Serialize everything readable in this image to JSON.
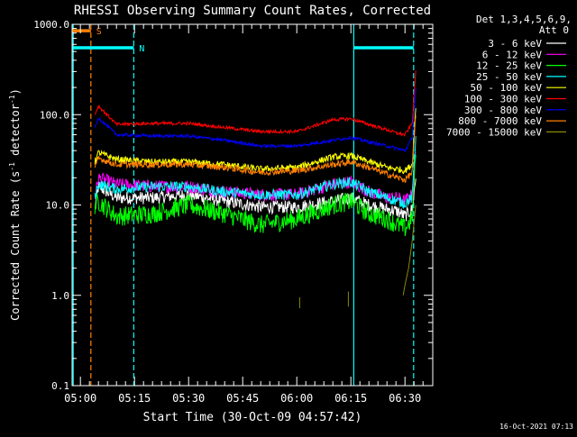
{
  "chart_data": {
    "type": "line",
    "title": "RHESSI Observing Summary Count Rates, Corrected",
    "xlabel": "Start Time (30-Oct-09 04:57:42)",
    "ylabel_main": "Corrected Count Rate (s",
    "ylabel_sup1": "-1",
    "ylabel_mid": " detector",
    "ylabel_sup2": "-1",
    "ylabel_end": ")",
    "yscale": "log",
    "ylim": [
      0.1,
      1000
    ],
    "xlim_minutes": [
      -2.3,
      97.7
    ],
    "x_unit": "minutes after 05:00 UT",
    "x_ticks": [
      {
        "label": "05:00",
        "value": 0
      },
      {
        "label": "05:15",
        "value": 15
      },
      {
        "label": "05:30",
        "value": 30
      },
      {
        "label": "05:45",
        "value": 45
      },
      {
        "label": "06:00",
        "value": 60
      },
      {
        "label": "06:15",
        "value": 75
      },
      {
        "label": "06:30",
        "value": 90
      }
    ],
    "y_ticks": [
      {
        "label": "0.1",
        "value": 0.1
      },
      {
        "label": "1.0",
        "value": 1
      },
      {
        "label": "10.0",
        "value": 10
      },
      {
        "label": "100.0",
        "value": 100
      },
      {
        "label": "1000.0",
        "value": 1000
      }
    ],
    "legend_header": [
      "Det 1,3,4,5,6,9,",
      "Att 0"
    ],
    "legend_position": "right",
    "series": [
      {
        "name": "3 - 6 keV",
        "color": "#ffffff",
        "x": [
          4,
          5,
          10,
          20,
          30,
          40,
          50,
          60,
          70,
          75,
          80,
          85,
          88,
          90,
          92,
          93
        ],
        "y": [
          9,
          16,
          12,
          12,
          13,
          11,
          9.5,
          9.5,
          11,
          12,
          10,
          9,
          8.5,
          7.5,
          9,
          20
        ],
        "noise": 0.06
      },
      {
        "name": "6 - 12 keV",
        "color": "#ff00ff",
        "x": [
          4,
          5,
          10,
          20,
          30,
          40,
          50,
          60,
          70,
          75,
          80,
          85,
          88,
          90,
          92,
          93
        ],
        "y": [
          12,
          20,
          17,
          16,
          16,
          14,
          13,
          13,
          17,
          18,
          14,
          12,
          12,
          11,
          13,
          40
        ],
        "noise": 0.06
      },
      {
        "name": "12 - 25 keV",
        "color": "#00ff00",
        "x": [
          4,
          5,
          10,
          20,
          30,
          40,
          50,
          60,
          70,
          75,
          80,
          85,
          88,
          90,
          92,
          93
        ],
        "y": [
          10,
          11,
          7.5,
          8,
          10,
          8,
          6,
          7,
          10,
          11,
          8,
          7,
          6,
          5.5,
          7,
          40
        ],
        "noise": 0.09
      },
      {
        "name": "25 - 50 keV",
        "color": "#00ffff",
        "x": [
          4,
          5,
          10,
          20,
          30,
          40,
          50,
          60,
          70,
          75,
          80,
          85,
          88,
          90,
          92,
          93
        ],
        "y": [
          12,
          17,
          15,
          16,
          16,
          14,
          13,
          13,
          17,
          18,
          14,
          12,
          11,
          10.5,
          12,
          60
        ],
        "noise": 0.05
      },
      {
        "name": "50 - 100 keV",
        "color": "#ffff00",
        "x": [
          4,
          5,
          10,
          20,
          30,
          40,
          50,
          60,
          70,
          75,
          80,
          85,
          88,
          90,
          92,
          93
        ],
        "y": [
          30,
          38,
          32,
          30,
          30,
          28,
          25,
          26,
          34,
          35,
          30,
          26,
          25,
          24,
          28,
          120
        ],
        "noise": 0.03
      },
      {
        "name": "100 - 300 keV",
        "color": "#ff0000",
        "x": [
          4,
          5,
          10,
          20,
          30,
          40,
          50,
          60,
          70,
          75,
          80,
          85,
          88,
          90,
          92,
          93
        ],
        "y": [
          100,
          125,
          78,
          80,
          80,
          72,
          65,
          65,
          88,
          90,
          78,
          68,
          62,
          60,
          80,
          320
        ],
        "noise": 0.015
      },
      {
        "name": "300 - 800 keV",
        "color": "#0000ff",
        "x": [
          4,
          5,
          10,
          20,
          30,
          40,
          50,
          60,
          70,
          75,
          80,
          85,
          88,
          90,
          92,
          93
        ],
        "y": [
          70,
          92,
          60,
          58,
          58,
          52,
          45,
          45,
          52,
          56,
          50,
          45,
          42,
          40,
          55,
          200
        ],
        "noise": 0.015
      },
      {
        "name": "800 - 7000 keV",
        "color": "#ff8000",
        "x": [
          4,
          5,
          10,
          20,
          30,
          40,
          50,
          60,
          70,
          75,
          80,
          85,
          88,
          90,
          92,
          93
        ],
        "y": [
          25,
          33,
          28,
          28,
          28,
          26,
          23,
          24,
          28,
          30,
          26,
          22,
          20,
          19,
          23,
          100
        ],
        "noise": 0.03
      },
      {
        "name": "7000 - 15000 keV",
        "color": "#8a8a00",
        "x": [
          89.5,
          90,
          91,
          92,
          93
        ],
        "y": [
          1.0,
          1.3,
          2,
          4,
          10
        ],
        "noise": 0
      },
      {
        "name": "",
        "color": "#8a8a00",
        "x": [
          60.8,
          60.8
        ],
        "y": [
          0.72,
          0.95
        ],
        "noise": 0
      },
      {
        "name": "",
        "color": "#8a8a00",
        "x": [
          74.3,
          74.3
        ],
        "y": [
          0.75,
          1.1
        ],
        "noise": 0
      }
    ],
    "flags": [
      {
        "label": "S",
        "color": "#ff8000",
        "x": [
          -2.3,
          2.9
        ],
        "y": 850
      },
      {
        "label": "N",
        "color": "#00ffff",
        "x": [
          -2.3,
          14.8
        ],
        "y": 550
      },
      {
        "label": "",
        "color": "#00ffff",
        "x": [
          75.8,
          92.4
        ],
        "y": 550
      }
    ],
    "vlines": [
      {
        "x": -2.0,
        "color": "#00ffff",
        "style": "solid"
      },
      {
        "x": 2.9,
        "color": "#ff8000",
        "style": "dashed"
      },
      {
        "x": 14.8,
        "color": "#00ffff",
        "style": "dashed"
      },
      {
        "x": 75.8,
        "color": "#00ffff",
        "style": "solid"
      },
      {
        "x": 92.4,
        "color": "#00ffff",
        "style": "dashed"
      }
    ],
    "timestamp": "16-Oct-2021 07:13"
  }
}
